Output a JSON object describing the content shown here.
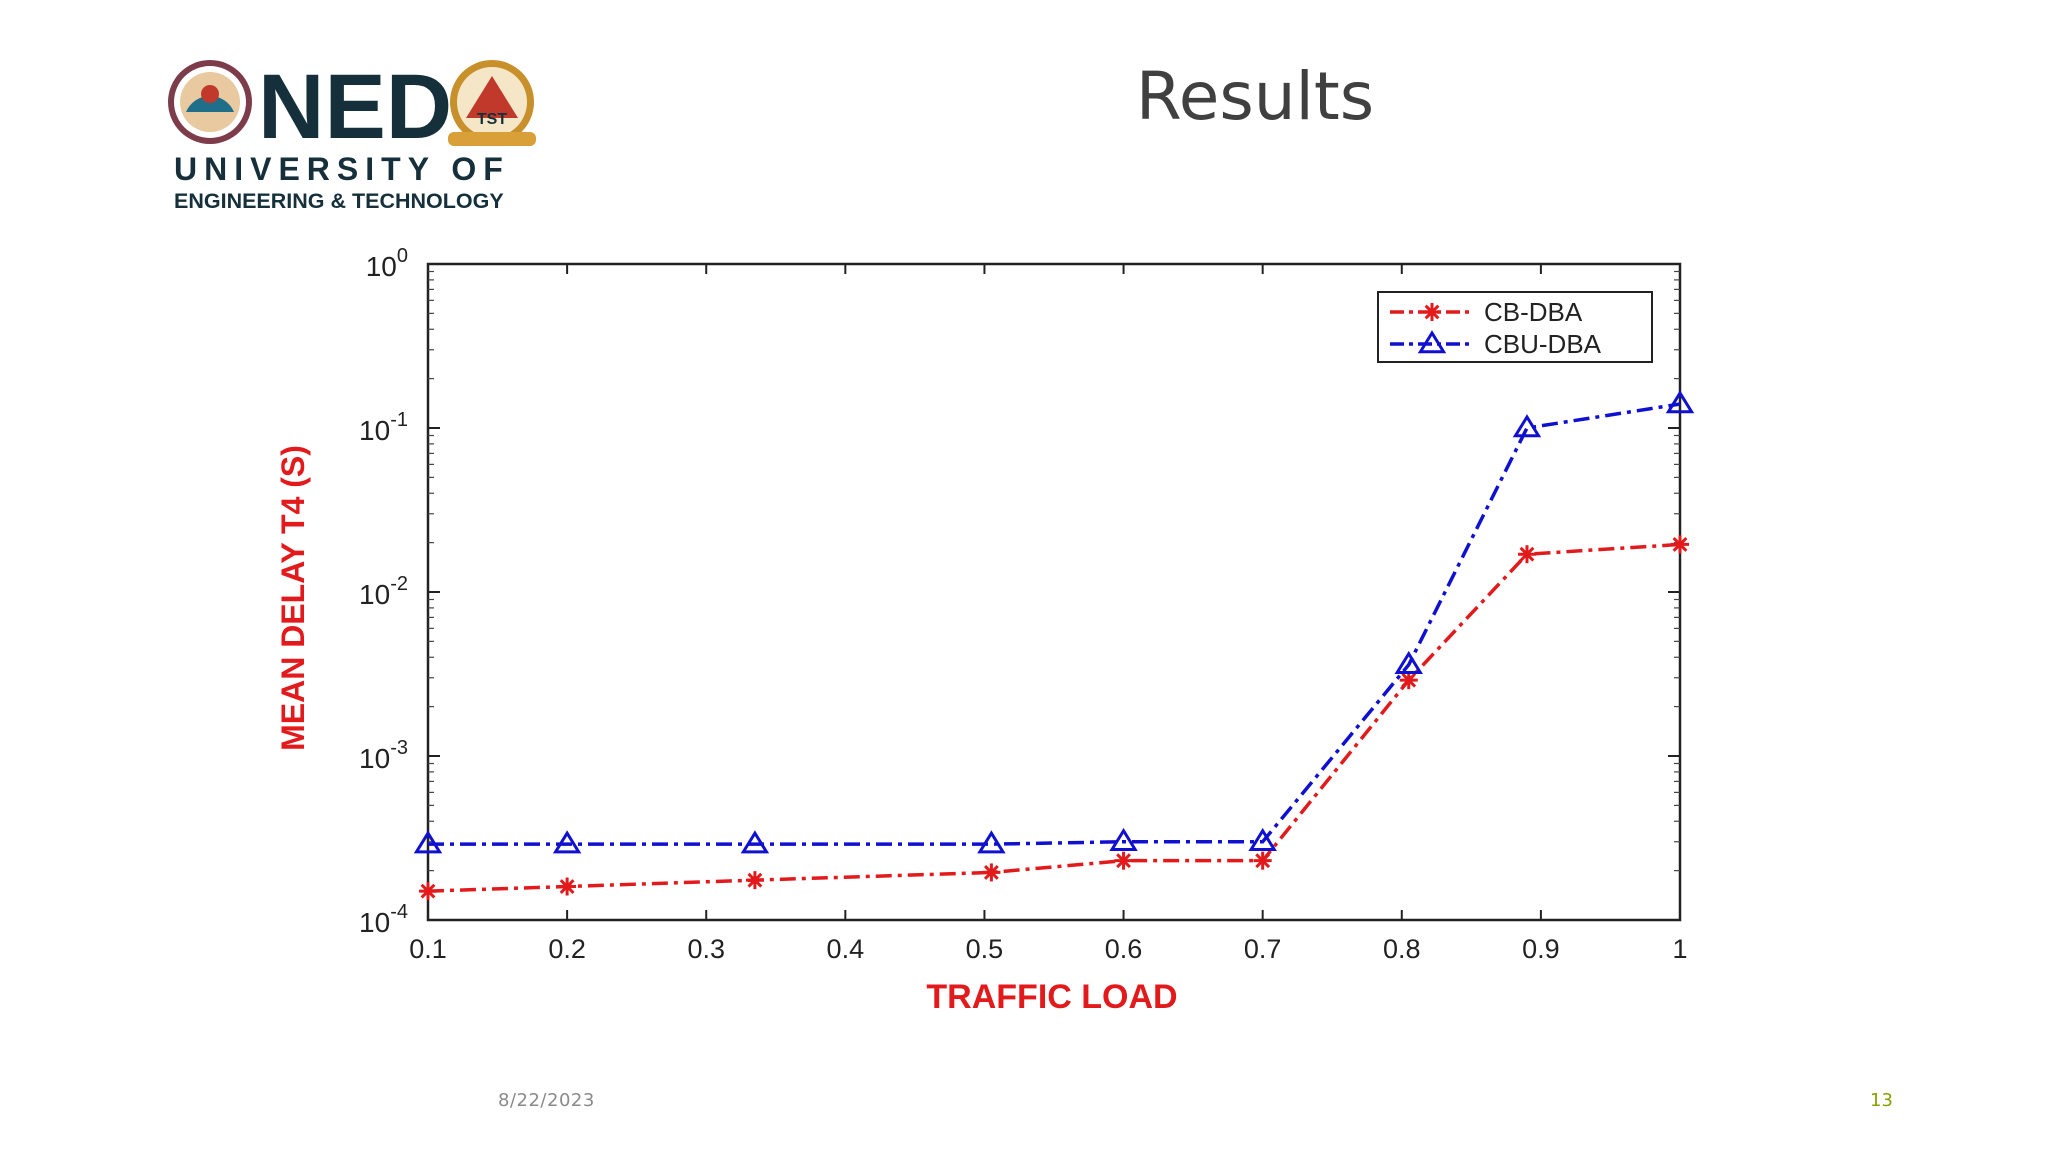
{
  "slide": {
    "title": "Results",
    "date": "8/22/2023",
    "page_number": "13"
  },
  "logo": {
    "name": "NED",
    "line1": "UNIVERSITY OF",
    "line2": "ENGINEERING & TECHNOLOGY",
    "crest_text": "TST",
    "colors": {
      "dark": "#15303a",
      "gold": "#c8902a",
      "red": "#c0392b"
    }
  },
  "chart_data": {
    "type": "line",
    "title": "",
    "xlabel": "TRAFFIC LOAD",
    "ylabel": "MEAN DELAY T4 (S)",
    "xlim": [
      0.1,
      1
    ],
    "ylim": [
      0.0001,
      1
    ],
    "yscale": "log",
    "x_ticks": [
      "0.1",
      "0.2",
      "0.3",
      "0.4",
      "0.5",
      "0.6",
      "0.7",
      "0.8",
      "0.9",
      "1"
    ],
    "y_ticks": [
      {
        "base": "10",
        "exp": "0"
      },
      {
        "base": "10",
        "exp": "-1"
      },
      {
        "base": "10",
        "exp": "-2"
      },
      {
        "base": "10",
        "exp": "-3"
      },
      {
        "base": "10",
        "exp": "-4"
      }
    ],
    "legend_position": "top-right",
    "grid": false,
    "series": [
      {
        "name": "CB-DBA",
        "color": "#e31a1c",
        "marker": "star",
        "line": "dash-dot",
        "x": [
          0.1,
          0.2,
          0.335,
          0.505,
          0.6,
          0.7,
          0.805,
          0.89,
          1.0
        ],
        "y": [
          0.00015,
          0.00016,
          0.000175,
          0.000195,
          0.00023,
          0.00023,
          0.0029,
          0.017,
          0.0195
        ]
      },
      {
        "name": "CBU-DBA",
        "color": "#1010d0",
        "marker": "triangle",
        "line": "dash-dot",
        "x": [
          0.1,
          0.2,
          0.335,
          0.505,
          0.6,
          0.7,
          0.805,
          0.89,
          1.0
        ],
        "y": [
          0.00029,
          0.00029,
          0.00029,
          0.00029,
          0.0003,
          0.0003,
          0.0036,
          0.1,
          0.14
        ]
      }
    ]
  }
}
